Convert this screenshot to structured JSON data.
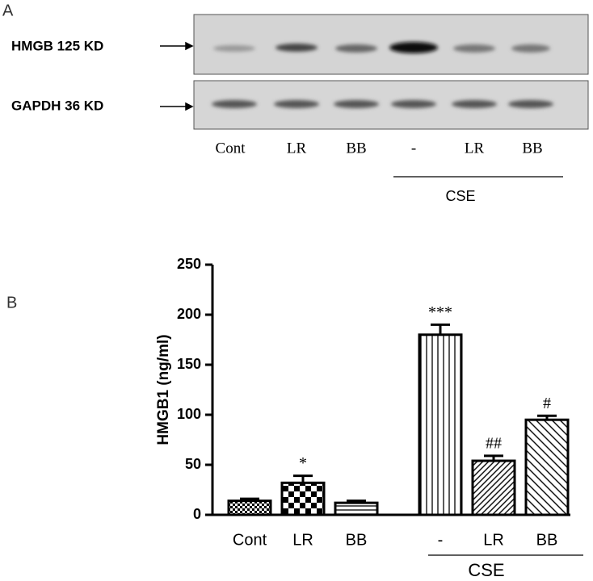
{
  "panel_a": {
    "label": "A",
    "blots": [
      "HMGB 125 KD",
      "GAPDH  36 KD"
    ],
    "lanes": [
      "Cont",
      "LR",
      "BB",
      "-",
      "LR",
      "BB"
    ],
    "group_label": "CSE"
  },
  "chart_data": {
    "type": "bar",
    "panel_label": "B",
    "y_label": "HMGB1 (ng/ml)",
    "categories": [
      "Cont",
      "LR",
      "BB",
      "-",
      "LR",
      "BB"
    ],
    "values": [
      14,
      32,
      12,
      180,
      54,
      95
    ],
    "errors": [
      2,
      7,
      2,
      10,
      5,
      4
    ],
    "annotations": [
      null,
      "*",
      null,
      "***",
      "##",
      "#"
    ],
    "group_label": "CSE",
    "color": "#000000",
    "ylim": [
      0,
      250
    ],
    "yticks": [
      0,
      50,
      100,
      150,
      200,
      250
    ]
  }
}
